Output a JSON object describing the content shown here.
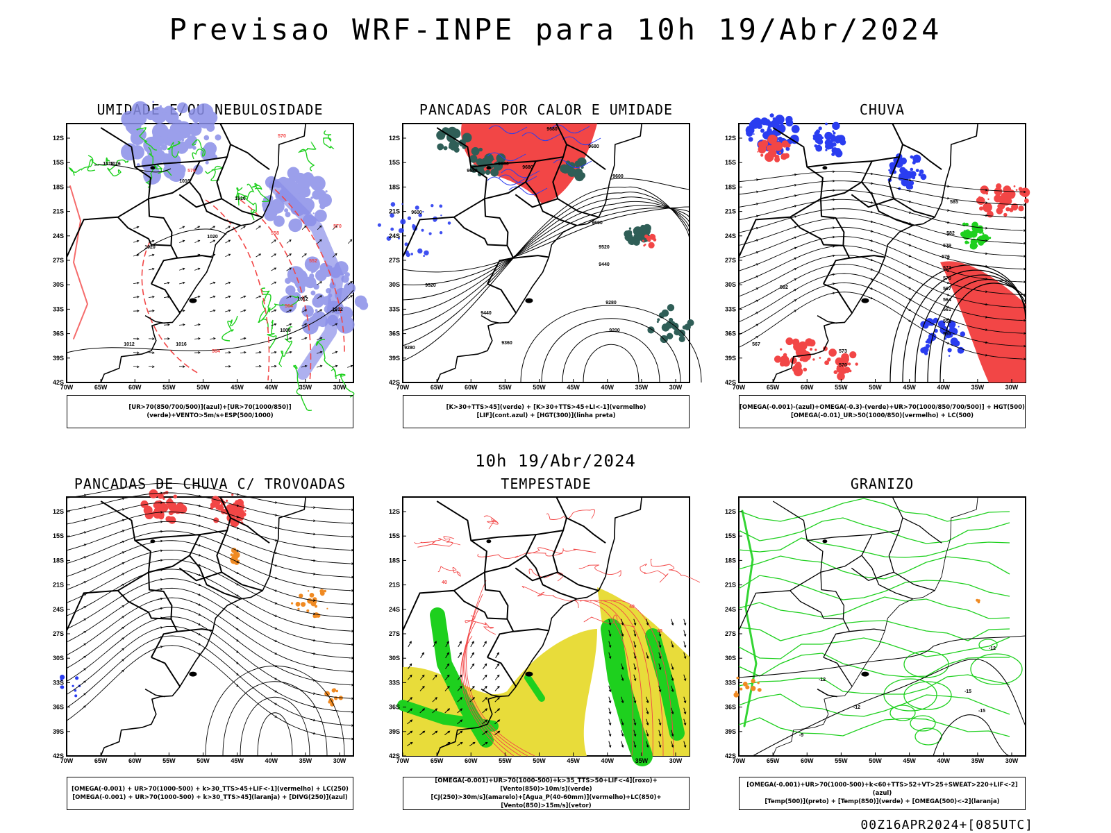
{
  "title": "Previsao WRF-INPE  para 10h 19/Abr/2024",
  "mid_title": "10h 19/Abr/2024",
  "footer": "00Z16APR2024+[085UTC]",
  "axes": {
    "lat_ticks": [
      "12S",
      "15S",
      "18S",
      "21S",
      "24S",
      "27S",
      "30S",
      "33S",
      "36S",
      "39S",
      "42S"
    ],
    "lon_ticks": [
      "70W",
      "65W",
      "60W",
      "55W",
      "50W",
      "45W",
      "40W",
      "35W",
      "30W"
    ]
  },
  "colors": {
    "humid_blue": "#8a8fe8",
    "green": "#1ed01e",
    "red": "#f24646",
    "dark_teal": "#2f5e57",
    "yellow": "#e8dc3a",
    "orange": "#f08a22",
    "blue": "#2a3df0"
  },
  "panels": [
    {
      "title": "UMIDADE E/OU NEBULOSIDADE",
      "legend": [
        "[UR>70(850/700/500)](azul)+[UR>70(1000/850)](verde)+VENTO>5m/s+ESP(500/1000)"
      ],
      "labels": [
        "1012",
        "1016",
        "1016",
        "1016",
        "1020",
        "1020",
        "1012",
        "1008",
        "1012",
        "1016",
        "1012",
        "570",
        "576",
        "564",
        "558",
        "552",
        "564",
        "570"
      ]
    },
    {
      "title": "PANCADAS POR CALOR E UMIDADE",
      "legend": [
        "[K>30+TTS>45](verde) + [K>30+TTS>45+LI<-1](vermelho)",
        "[LIF](cont.azul) + [HGT(300)](linha preta)"
      ],
      "labels": [
        "9680",
        "9680",
        "9680",
        "9680",
        "9680",
        "9600",
        "9600",
        "9520",
        "9440",
        "9280",
        "9200",
        "9600",
        "9520",
        "9440",
        "9360",
        "9280"
      ]
    },
    {
      "title": "CHUVA",
      "legend": [
        "[OMEGA(-0.001)-(azul)+OMEGA(-0.3)-(verde)+UR>70(1000/850/700/500)] + HGT(500)",
        "[OMEGA(-0.01)_UR>50(1000/850)(vermelho) + LC(500)"
      ],
      "labels": [
        "585",
        "582",
        "579",
        "576",
        "573",
        "570",
        "567",
        "564",
        "561",
        "558",
        "555",
        "582",
        "567",
        "573",
        "570"
      ]
    },
    {
      "title": "PANCADAS DE CHUVA C/ TROVOADAS",
      "legend": [
        "[OMEGA(-0.001) + UR>70(1000-500) + k>30_TTS>45+LIF<-1](vermelho) + LC(250)",
        "[OMEGA(-0.001) + UR>70(1000-500) + k>30_TTS>45](laranja) + [DIVG(250)](azul)"
      ],
      "labels": []
    },
    {
      "title": "TEMPESTADE",
      "legend": [
        "[OMEGA(-0.001)+UR>70(1000-500)+k>35_TTS>50+LIF<-4](roxo)+[Vento(850)>10m/s](verde)",
        "[CJ(250)>30m/s](amarelo)+[Agua_P(40-60mm)](vermelho)+LC(850)+[Vento(850)>15m/s](vetor)"
      ],
      "labels": [
        "40",
        "40",
        "40"
      ]
    },
    {
      "title": "GRANIZO",
      "legend": [
        "[OMEGA(-0.001)+UR>70(1000-500)+k<60+TTS>52+VT>25+SWEAT>220+LIF<-2](azul)",
        "[Temp(500)](preto) + [Temp(850)](verde) + [OMEGA(500)<-2](laranja)"
      ],
      "labels": [
        "-12",
        "-12",
        "-15",
        "-15",
        "-12",
        "-9"
      ]
    }
  ]
}
